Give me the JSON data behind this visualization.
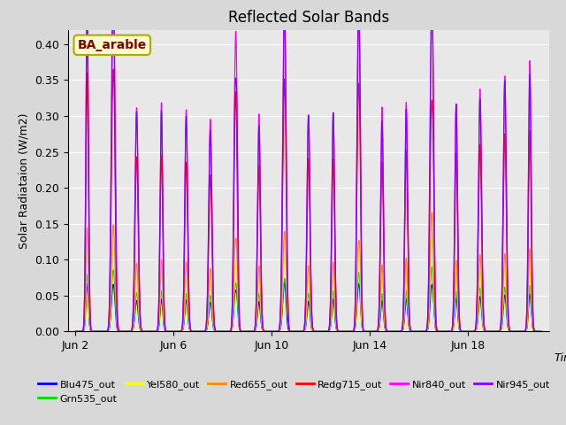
{
  "title": "Reflected Solar Bands",
  "ylabel": "Solar Radiataion (W/m2)",
  "annotation": "BA_arable",
  "ylim": [
    0.0,
    0.42
  ],
  "yticks": [
    0.0,
    0.05,
    0.1,
    0.15,
    0.2,
    0.25,
    0.3,
    0.35,
    0.4
  ],
  "xtick_positions": [
    0,
    4,
    8,
    12,
    16
  ],
  "xtick_labels": [
    "Jun 2",
    "Jun 6",
    "Jun 10",
    "Jun 14",
    "Jun 18"
  ],
  "series": [
    {
      "label": "Blu475_out",
      "color": "#0000ff",
      "scale": 0.048
    },
    {
      "label": "Grn535_out",
      "color": "#00dd00",
      "scale": 0.06
    },
    {
      "label": "Yel580_out",
      "color": "#ffff00",
      "scale": 0.085
    },
    {
      "label": "Red655_out",
      "color": "#ff8800",
      "scale": 0.105
    },
    {
      "label": "Redg715_out",
      "color": "#ff0000",
      "scale": 0.26
    },
    {
      "label": "Nir840_out",
      "color": "#ff00ff",
      "scale": 0.34
    },
    {
      "label": "Nir945_out",
      "color": "#8800ff",
      "scale": 0.33
    }
  ],
  "n_days": 19,
  "background_color": "#d8d8d8",
  "plot_bg": "#e8e8e8",
  "grid_color": "#ffffff",
  "annotation_bg": "#ffffcc",
  "annotation_fg": "#880000",
  "annotation_edge": "#aaaa00",
  "figsize": [
    6.4,
    4.8
  ],
  "dpi": 100,
  "linewidth": 0.9
}
